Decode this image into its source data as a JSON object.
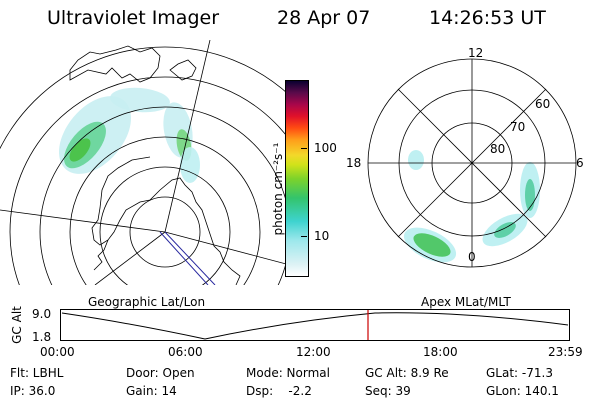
{
  "header": {
    "instrument": "Ultraviolet Imager",
    "date": "28 Apr 07",
    "time": "14:26:53 UT"
  },
  "colorbar": {
    "unit_label": "photon cm⁻²s⁻¹",
    "tick_100": "100",
    "tick_10": "10"
  },
  "left_panel": {
    "label": "Geographic Lat/Lon"
  },
  "right_panel": {
    "label": "Apex  MLat/MLT",
    "mlt_12": "12",
    "mlt_18": "18",
    "mlt_6": "6",
    "mlt_0": "0",
    "lat_60": "60",
    "lat_70": "70",
    "lat_80": "80"
  },
  "altitude_plot": {
    "axis_label": "GC Alt",
    "y_high": "9.0",
    "y_low": "1.8",
    "times": [
      "00:00",
      "06:00",
      "12:00",
      "18:00",
      "23:59"
    ],
    "current_marker_color": "#cc0000"
  },
  "status": {
    "flt": "Flt: LBHL",
    "ip": "IP: 36.0",
    "door": "Door: Open",
    "gain": "Gain: 14",
    "mode": "Mode: Normal",
    "dsp": "Dsp:    -2.2",
    "gcalt": "GC Alt: 8.9 Re",
    "seq": "Seq: 39",
    "glat": "GLat: -71.3",
    "glon": "GLon: 140.1"
  }
}
